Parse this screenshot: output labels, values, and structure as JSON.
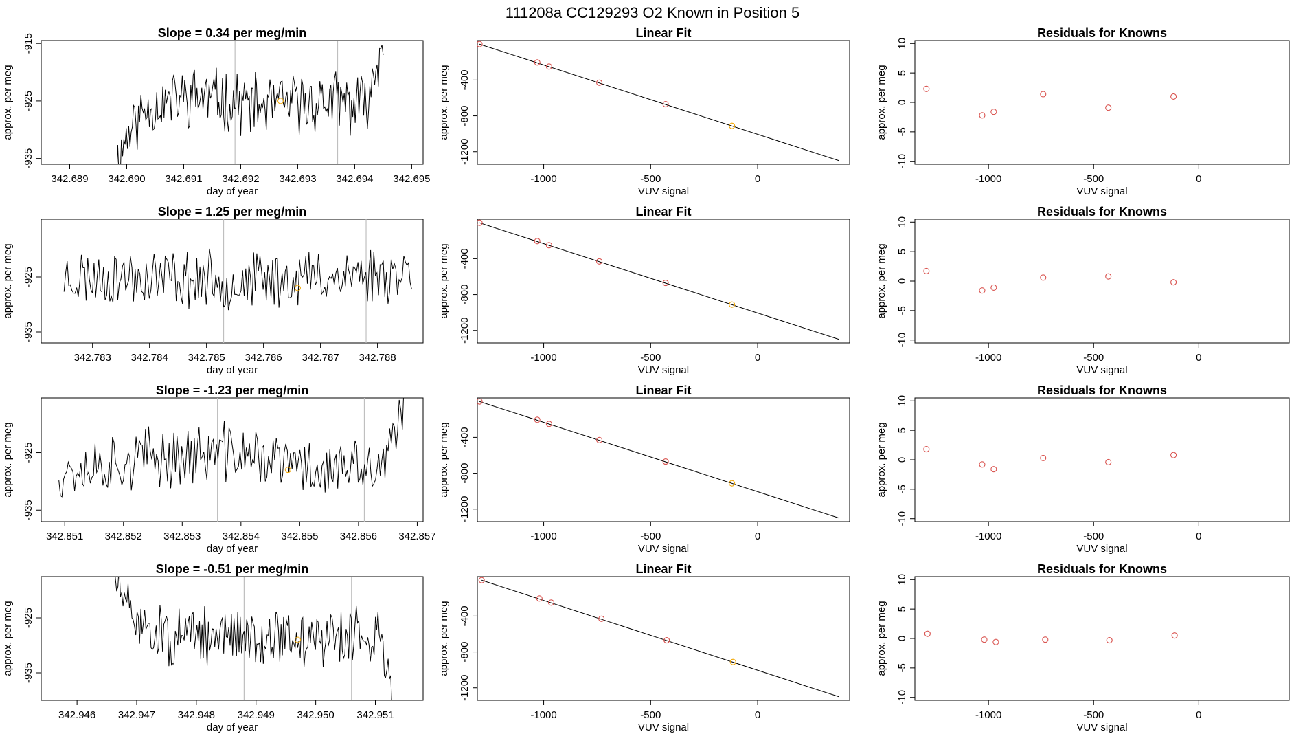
{
  "page_title": "111208a      CC129293    O2 Known in Position  5",
  "colors": {
    "axis": "#000000",
    "line": "#000000",
    "vline": "#bfbfbf",
    "fit": "#000000",
    "known_point": "#d9534f",
    "sample_point": "#f0a500"
  },
  "chart_data": [
    {
      "type": "line",
      "role": "timeseries",
      "row": 0,
      "title": "Slope =  0.34  per meg/min",
      "xlabel": "day of year",
      "ylabel": "approx. per meg",
      "xlim": [
        342.6885,
        342.6952
      ],
      "ylim": [
        -936,
        -914.5
      ],
      "xticks": [
        "342.689",
        "342.690",
        "342.691",
        "342.692",
        "342.693",
        "342.694",
        "342.695"
      ],
      "yticks": [
        "-915",
        "-925",
        "-935"
      ],
      "x_range": [
        342.6898,
        342.6945
      ],
      "seed": 11,
      "anchors": [
        [
          0,
          -937
        ],
        [
          0.04,
          -931
        ],
        [
          0.12,
          -926
        ],
        [
          0.3,
          -924
        ],
        [
          0.55,
          -926
        ],
        [
          0.8,
          -925
        ],
        [
          0.93,
          -926
        ],
        [
          0.97,
          -920
        ],
        [
          1.0,
          -913
        ]
      ],
      "vlines": [
        342.6919,
        342.6937
      ],
      "marker": [
        342.6927,
        -925
      ]
    },
    {
      "type": "line",
      "role": "linear_fit",
      "row": 0,
      "title": "Linear Fit",
      "xlabel": "VUV signal",
      "ylabel": "approx. per meg",
      "xlim": [
        -1310,
        430
      ],
      "ylim": [
        -1340,
        40
      ],
      "xticks": [
        -1000,
        -500,
        0
      ],
      "yticks": [
        -400,
        -800,
        -1200
      ],
      "line": [
        [
          -1300,
          0
        ],
        [
          380,
          -1300
        ]
      ],
      "points": [
        [
          -1300,
          0
        ],
        [
          -1030,
          -204
        ],
        [
          -975,
          -250
        ],
        [
          -740,
          -430
        ],
        [
          -430,
          -670
        ],
        [
          -120,
          -912
        ]
      ],
      "highlight_index": 5
    },
    {
      "type": "scatter",
      "role": "residuals",
      "row": 0,
      "title": "Residuals for Knowns",
      "xlabel": "VUV signal",
      "ylabel": "approx. per meg",
      "xlim": [
        -1350,
        430
      ],
      "ylim": [
        -10.5,
        10.5
      ],
      "xticks": [
        -1000,
        -500,
        0
      ],
      "yticks": [
        10,
        5,
        0,
        -5,
        -10
      ],
      "points": [
        [
          -1295,
          2.3
        ],
        [
          -1030,
          -2.2
        ],
        [
          -975,
          -1.6
        ],
        [
          -740,
          1.4
        ],
        [
          -430,
          -0.9
        ],
        [
          -120,
          1.0
        ]
      ]
    },
    {
      "type": "line",
      "role": "timeseries",
      "row": 1,
      "title": "Slope =  1.25  per meg/min",
      "xlabel": "day of year",
      "ylabel": "approx. per meg",
      "xlim": [
        342.7821,
        342.7888
      ],
      "ylim": [
        -937,
        -914.5
      ],
      "xticks": [
        "342.783",
        "342.784",
        "342.785",
        "342.786",
        "342.787",
        "342.788"
      ],
      "yticks": [
        "-925",
        "-935"
      ],
      "x_range": [
        342.7825,
        342.7886
      ],
      "seed": 23,
      "anchors": [
        [
          0,
          -925
        ],
        [
          0.3,
          -925
        ],
        [
          0.5,
          -926
        ],
        [
          0.7,
          -925
        ],
        [
          1,
          -924
        ]
      ],
      "vlines": [
        342.7853,
        342.7878
      ],
      "marker": [
        342.7866,
        -927
      ]
    },
    {
      "type": "line",
      "role": "linear_fit",
      "row": 1,
      "title": "Linear Fit",
      "xlabel": "VUV signal",
      "ylabel": "approx. per meg",
      "xlim": [
        -1310,
        430
      ],
      "ylim": [
        -1340,
        40
      ],
      "xticks": [
        -1000,
        -500,
        0
      ],
      "yticks": [
        -400,
        -800,
        -1200
      ],
      "line": [
        [
          -1300,
          0
        ],
        [
          380,
          -1300
        ]
      ],
      "points": [
        [
          -1300,
          0
        ],
        [
          -1030,
          -204
        ],
        [
          -975,
          -250
        ],
        [
          -740,
          -430
        ],
        [
          -430,
          -670
        ],
        [
          -120,
          -912
        ]
      ],
      "highlight_index": 5
    },
    {
      "type": "scatter",
      "role": "residuals",
      "row": 1,
      "title": "Residuals for Knowns",
      "xlabel": "VUV signal",
      "ylabel": "approx. per meg",
      "xlim": [
        -1350,
        430
      ],
      "ylim": [
        -10.5,
        10.5
      ],
      "xticks": [
        -1000,
        -500,
        0
      ],
      "yticks": [
        10,
        5,
        0,
        -5,
        -10
      ],
      "points": [
        [
          -1295,
          1.7
        ],
        [
          -1030,
          -1.6
        ],
        [
          -975,
          -1.1
        ],
        [
          -740,
          0.6
        ],
        [
          -430,
          0.8
        ],
        [
          -120,
          -0.2
        ]
      ]
    },
    {
      "type": "line",
      "role": "timeseries",
      "row": 2,
      "title": "Slope =  -1.23  per meg/min",
      "xlabel": "day of year",
      "ylabel": "approx. per meg",
      "xlim": [
        342.8506,
        342.8571
      ],
      "ylim": [
        -937,
        -915.5
      ],
      "xticks": [
        "342.851",
        "342.852",
        "342.853",
        "342.854",
        "342.855",
        "342.856",
        "342.857"
      ],
      "yticks": [
        "-925",
        "-935"
      ],
      "x_range": [
        342.8509,
        342.8568
      ],
      "seed": 37,
      "anchors": [
        [
          0,
          -928
        ],
        [
          0.25,
          -926
        ],
        [
          0.5,
          -925
        ],
        [
          0.75,
          -928
        ],
        [
          0.93,
          -928
        ],
        [
          0.97,
          -923
        ],
        [
          1,
          -915
        ]
      ],
      "vlines": [
        342.8536,
        342.8561
      ],
      "marker": [
        342.8548,
        -928
      ]
    },
    {
      "type": "line",
      "role": "linear_fit",
      "row": 2,
      "title": "Linear Fit",
      "xlabel": "VUV signal",
      "ylabel": "approx. per meg",
      "xlim": [
        -1310,
        430
      ],
      "ylim": [
        -1340,
        40
      ],
      "xticks": [
        -1000,
        -500,
        0
      ],
      "yticks": [
        -400,
        -800,
        -1200
      ],
      "line": [
        [
          -1300,
          0
        ],
        [
          380,
          -1300
        ]
      ],
      "points": [
        [
          -1300,
          0
        ],
        [
          -1030,
          -204
        ],
        [
          -975,
          -250
        ],
        [
          -740,
          -430
        ],
        [
          -430,
          -670
        ],
        [
          -120,
          -912
        ]
      ],
      "highlight_index": 5
    },
    {
      "type": "scatter",
      "role": "residuals",
      "row": 2,
      "title": "Residuals for Knowns",
      "xlabel": "VUV signal",
      "ylabel": "approx. per meg",
      "xlim": [
        -1350,
        430
      ],
      "ylim": [
        -10.5,
        10.5
      ],
      "xticks": [
        -1000,
        -500,
        0
      ],
      "yticks": [
        10,
        5,
        0,
        -5,
        -10
      ],
      "points": [
        [
          -1295,
          1.8
        ],
        [
          -1030,
          -0.8
        ],
        [
          -975,
          -1.6
        ],
        [
          -740,
          0.3
        ],
        [
          -430,
          -0.4
        ],
        [
          -120,
          0.8
        ]
      ]
    },
    {
      "type": "line",
      "role": "timeseries",
      "row": 3,
      "title": "Slope =  -0.51  per meg/min",
      "xlabel": "day of year",
      "ylabel": "approx. per meg",
      "xlim": [
        342.9454,
        342.9518
      ],
      "ylim": [
        -940,
        -917.5
      ],
      "xticks": [
        "342.946",
        "342.947",
        "342.948",
        "342.949",
        "342.950",
        "342.951"
      ],
      "yticks": [
        "-925",
        "-935"
      ],
      "x_range": [
        342.9466,
        342.9513
      ],
      "seed": 51,
      "anchors": [
        [
          0,
          -916
        ],
        [
          0.05,
          -924
        ],
        [
          0.2,
          -929
        ],
        [
          0.5,
          -928
        ],
        [
          0.7,
          -929
        ],
        [
          0.96,
          -928
        ],
        [
          1,
          -942
        ]
      ],
      "vlines": [
        342.9488,
        342.9506
      ],
      "marker": [
        342.9497,
        -929
      ]
    },
    {
      "type": "line",
      "role": "linear_fit",
      "row": 3,
      "title": "Linear Fit",
      "xlabel": "VUV signal",
      "ylabel": "approx. per meg",
      "xlim": [
        -1310,
        430
      ],
      "ylim": [
        -1340,
        40
      ],
      "xticks": [
        -1000,
        -500,
        0
      ],
      "yticks": [
        -400,
        -800,
        -1200
      ],
      "line": [
        [
          -1290,
          0
        ],
        [
          380,
          -1300
        ]
      ],
      "points": [
        [
          -1290,
          0
        ],
        [
          -1020,
          -204
        ],
        [
          -965,
          -250
        ],
        [
          -730,
          -430
        ],
        [
          -425,
          -670
        ],
        [
          -115,
          -912
        ]
      ],
      "highlight_index": 5
    },
    {
      "type": "scatter",
      "role": "residuals",
      "row": 3,
      "title": "Residuals for Knowns",
      "xlabel": "VUV signal",
      "ylabel": "approx. per meg",
      "xlim": [
        -1350,
        430
      ],
      "ylim": [
        -10.5,
        10.5
      ],
      "xticks": [
        -1000,
        -500,
        0
      ],
      "yticks": [
        10,
        5,
        0,
        -5,
        -10
      ],
      "points": [
        [
          -1290,
          0.8
        ],
        [
          -1020,
          -0.2
        ],
        [
          -965,
          -0.6
        ],
        [
          -730,
          -0.2
        ],
        [
          -425,
          -0.3
        ],
        [
          -115,
          0.5
        ]
      ]
    }
  ]
}
